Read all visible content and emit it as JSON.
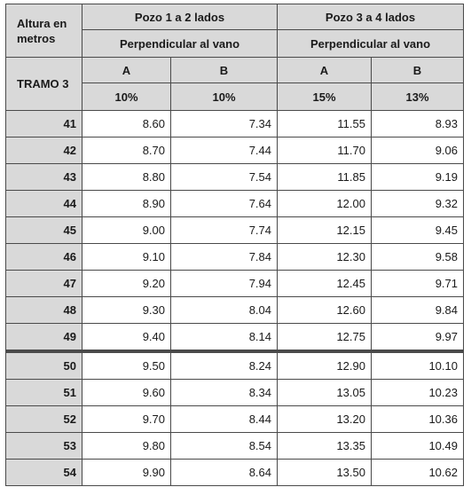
{
  "header": {
    "altura_label": "Altura en metros",
    "tramo_label": "TRAMO 3",
    "groups": [
      {
        "title": "Pozo 1 a 2 lados",
        "subtitle": "Perpendicular al vano",
        "cols": [
          {
            "letter": "A",
            "pct": "10%"
          },
          {
            "letter": "B",
            "pct": "10%"
          }
        ]
      },
      {
        "title": "Pozo 3 a 4 lados",
        "subtitle": "Perpendicular al vano",
        "cols": [
          {
            "letter": "A",
            "pct": "15%"
          },
          {
            "letter": "B",
            "pct": "13%"
          }
        ]
      }
    ]
  },
  "rows": [
    {
      "h": "41",
      "v": [
        "8.60",
        "7.34",
        "11.55",
        "8.93"
      ]
    },
    {
      "h": "42",
      "v": [
        "8.70",
        "7.44",
        "11.70",
        "9.06"
      ]
    },
    {
      "h": "43",
      "v": [
        "8.80",
        "7.54",
        "11.85",
        "9.19"
      ]
    },
    {
      "h": "44",
      "v": [
        "8.90",
        "7.64",
        "12.00",
        "9.32"
      ]
    },
    {
      "h": "45",
      "v": [
        "9.00",
        "7.74",
        "12.15",
        "9.45"
      ]
    },
    {
      "h": "46",
      "v": [
        "9.10",
        "7.84",
        "12.30",
        "9.58"
      ]
    },
    {
      "h": "47",
      "v": [
        "9.20",
        "7.94",
        "12.45",
        "9.71"
      ]
    },
    {
      "h": "48",
      "v": [
        "9.30",
        "8.04",
        "12.60",
        "9.84"
      ]
    },
    {
      "h": "49",
      "v": [
        "9.40",
        "8.14",
        "12.75",
        "9.97"
      ]
    },
    {
      "h": "50",
      "v": [
        "9.50",
        "8.24",
        "12.90",
        "10.10"
      ]
    },
    {
      "h": "51",
      "v": [
        "9.60",
        "8.34",
        "13.05",
        "10.23"
      ]
    },
    {
      "h": "52",
      "v": [
        "9.70",
        "8.44",
        "13.20",
        "10.36"
      ]
    },
    {
      "h": "53",
      "v": [
        "9.80",
        "8.54",
        "13.35",
        "10.49"
      ]
    },
    {
      "h": "54",
      "v": [
        "9.90",
        "8.64",
        "13.50",
        "10.62"
      ]
    }
  ]
}
